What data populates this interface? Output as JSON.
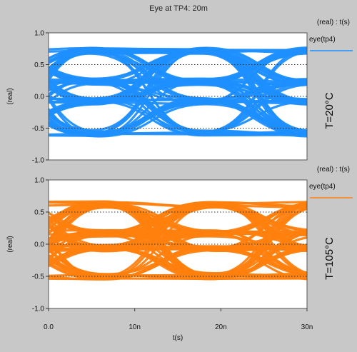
{
  "chart_data": {
    "title": "Eye at TP4: 20m",
    "type": "line",
    "x_axis": {
      "label": "t(s)",
      "range": [
        0,
        3e-08
      ],
      "ticks": [
        0,
        1e-08,
        2e-08,
        3e-08
      ],
      "tick_labels": [
        "0.0",
        "10n",
        "20n",
        "30n"
      ]
    },
    "plots": [
      {
        "legend_header": "(real) : t(s)",
        "ylabel": "(real)",
        "ylim": [
          -1.0,
          1.0
        ],
        "yticks": [
          -1.0,
          -0.5,
          0.0,
          0.5,
          1.0
        ],
        "ytick_labels": [
          "-1.0",
          "-0.5",
          "0.0",
          "0.5",
          "1.0"
        ],
        "series": [
          {
            "name": "eye(tp4)",
            "color": "#1e8fff"
          }
        ],
        "side_label": "T=20°C",
        "levels": [
          -0.58,
          -0.08,
          0.23,
          0.72
        ],
        "unit_interval": 1.25e-08,
        "eye_crossings": [
          5.3e-09,
          1.78e-08,
          3.03e-08
        ],
        "reference_lines": [
          0.5,
          0.0,
          -0.5
        ],
        "grid": false
      },
      {
        "legend_header": "(real) : t(s)",
        "ylabel": "(real)",
        "ylim": [
          -1.0,
          1.0
        ],
        "yticks": [
          -1.0,
          -0.5,
          0.0,
          0.5,
          1.0
        ],
        "ytick_labels": [
          "-1.0",
          "-0.5",
          "0.0",
          "0.5",
          "1.0"
        ],
        "series": [
          {
            "name": "eye(tp4)",
            "color": "#ff7f0e"
          }
        ],
        "side_label": "T=105°C",
        "levels": [
          -0.5,
          -0.06,
          0.17,
          0.62
        ],
        "unit_interval": 1.25e-08,
        "eye_crossings": [
          6.5e-09,
          1.9e-08,
          3.15e-08
        ],
        "reference_lines": [
          0.5,
          0.0,
          -0.5
        ],
        "grid": false
      }
    ]
  }
}
